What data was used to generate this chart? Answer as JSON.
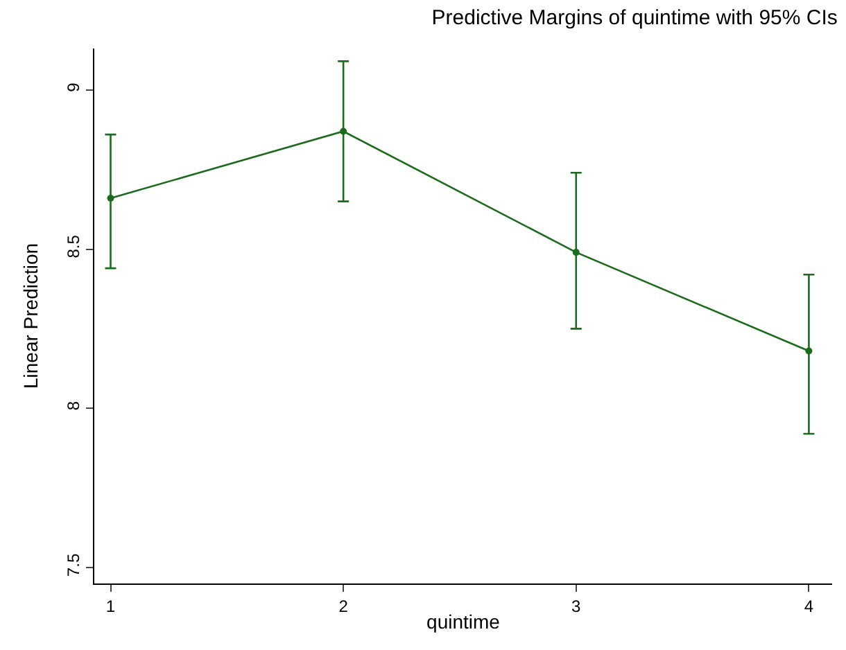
{
  "chart_data": {
    "type": "line",
    "title": "Predictive Margins of quintime with 95% CIs",
    "xlabel": "quintime",
    "ylabel": "Linear Prediction",
    "x": [
      1,
      2,
      3,
      4
    ],
    "series": [
      {
        "color": "#1a6b1a",
        "values": [
          8.66,
          8.87,
          8.49,
          8.18
        ],
        "errors": [
          [
            8.44,
            8.86
          ],
          [
            8.65,
            9.09
          ],
          [
            8.25,
            8.74
          ],
          [
            7.92,
            8.42
          ]
        ]
      }
    ],
    "xlim": [
      0.93,
      4.1
    ],
    "ylim": [
      7.45,
      9.13
    ],
    "xticks": [
      1,
      2,
      3,
      4
    ],
    "yticks": [
      7.5,
      8,
      8.5,
      9
    ],
    "marker": "circle",
    "line_style": "solid"
  }
}
